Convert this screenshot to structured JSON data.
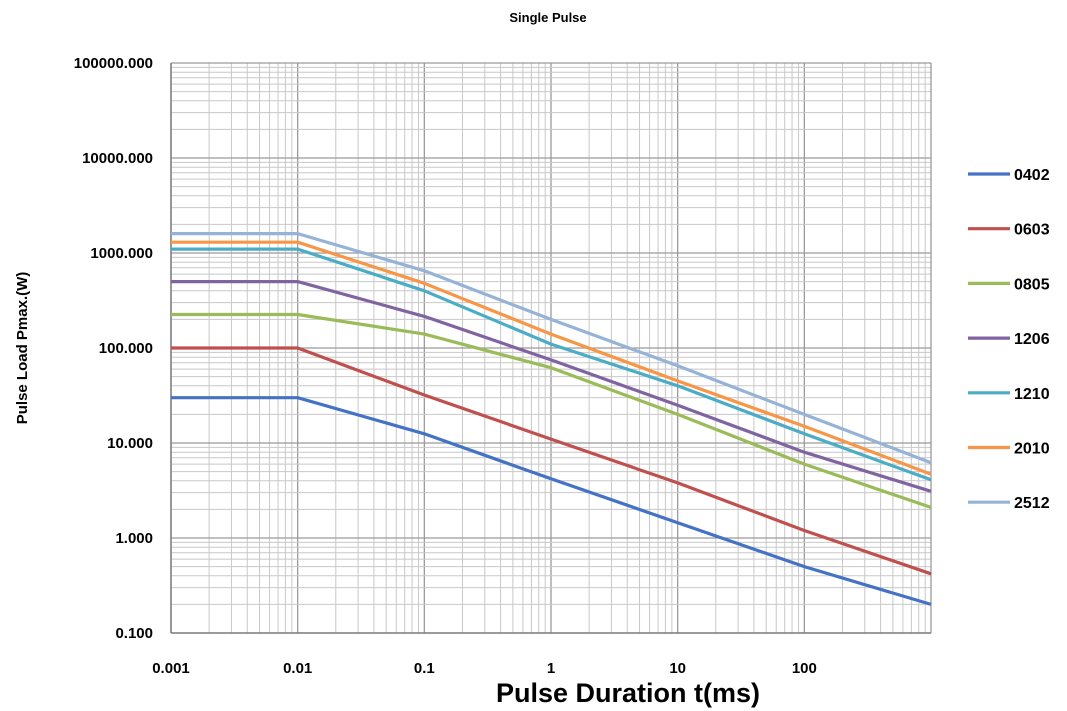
{
  "chart_data": {
    "type": "line",
    "title": "Single Pulse",
    "xlabel": "Pulse Duration  t(ms)",
    "ylabel": "Pulse Load  Pmax.(W)",
    "x_scale": "log",
    "y_scale": "log",
    "xlim": [
      0.001,
      1000
    ],
    "ylim": [
      0.1,
      100000
    ],
    "x_tick_labels": [
      "0.001",
      "0.01",
      "0.1",
      "1",
      "10",
      "100"
    ],
    "y_tick_labels": [
      "100000.000",
      "10000.000",
      "1000.000",
      "100.000",
      "10.000",
      "1.000",
      "0.100"
    ],
    "grid": true,
    "legend_position": "right",
    "x": [
      0.001,
      0.01,
      0.1,
      1,
      10,
      100,
      1000
    ],
    "series": [
      {
        "name": "0402",
        "color": "#4472C4",
        "values": [
          30,
          30,
          12.5,
          4.2,
          1.45,
          0.5,
          0.2
        ]
      },
      {
        "name": "0603",
        "color": "#C0504D",
        "values": [
          100,
          100,
          32,
          11,
          3.8,
          1.2,
          0.42
        ]
      },
      {
        "name": "0805",
        "color": "#9BBB59",
        "values": [
          225,
          225,
          140,
          62,
          20,
          6,
          2.1
        ]
      },
      {
        "name": "1206",
        "color": "#8064A2",
        "values": [
          500,
          500,
          215,
          75,
          25,
          8,
          3.1
        ]
      },
      {
        "name": "1210",
        "color": "#4BACC6",
        "values": [
          1100,
          1100,
          400,
          110,
          40,
          12.5,
          4.1
        ]
      },
      {
        "name": "2010",
        "color": "#F79646",
        "values": [
          1300,
          1300,
          480,
          140,
          45,
          15,
          4.7
        ]
      },
      {
        "name": "2512",
        "color": "#95B3D7",
        "values": [
          1600,
          1600,
          650,
          200,
          65,
          20,
          6.2
        ]
      }
    ]
  }
}
